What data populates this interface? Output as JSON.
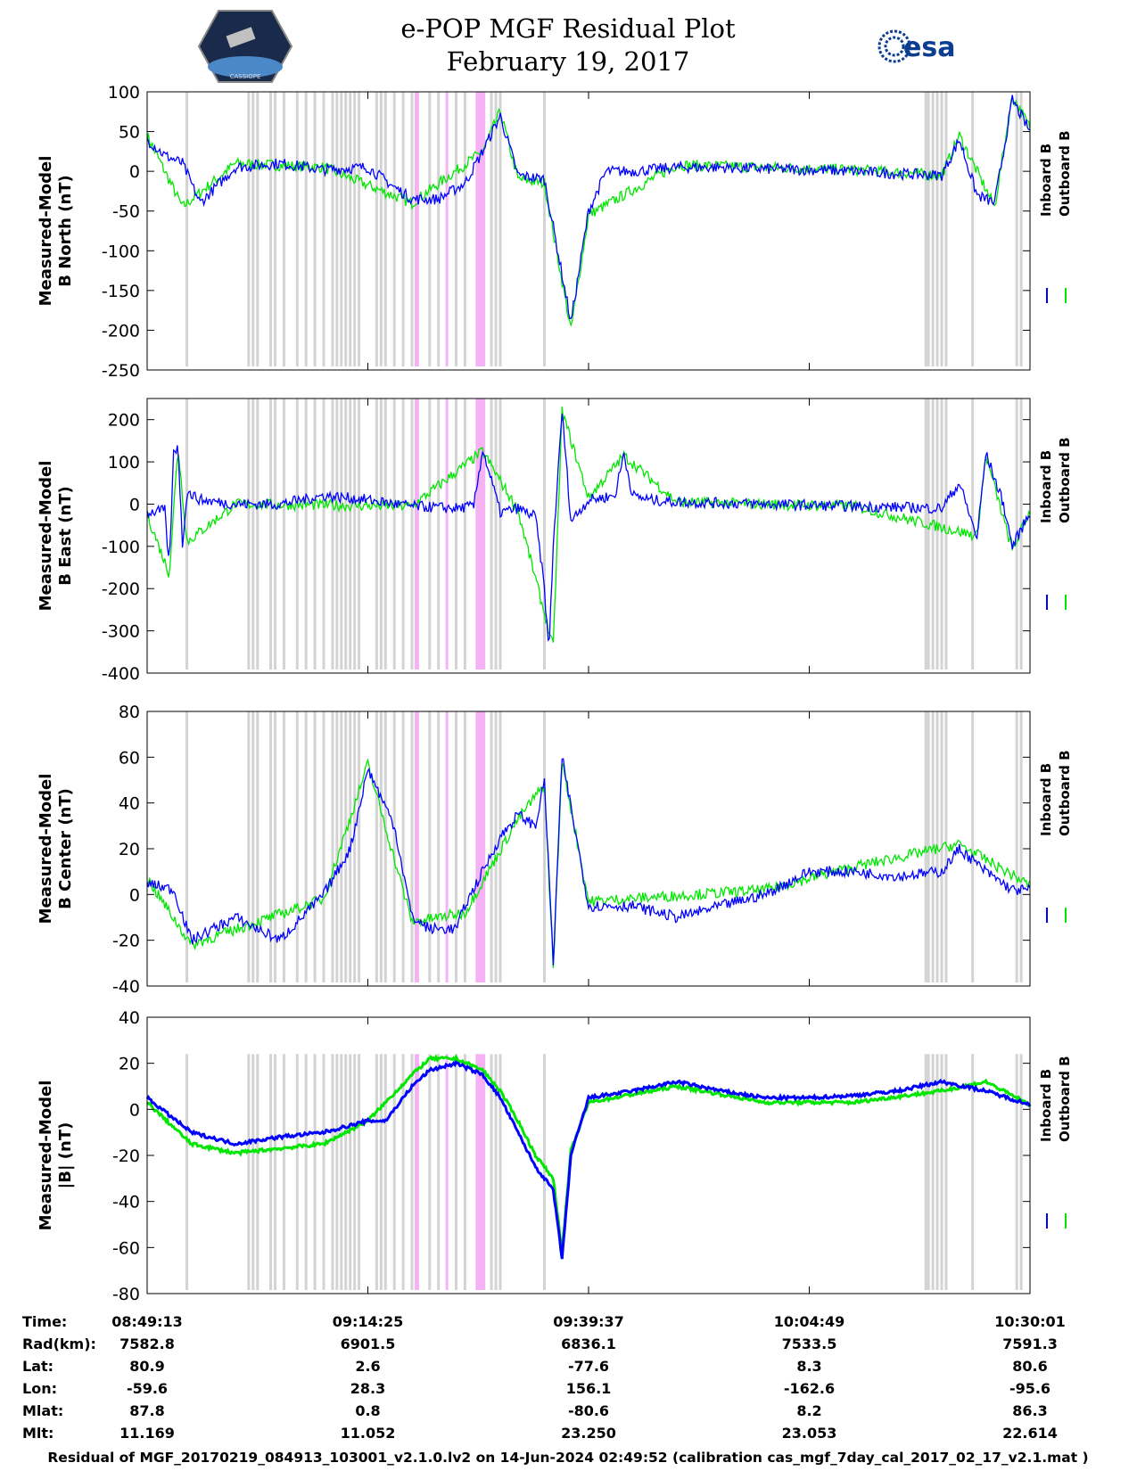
{
  "header": {
    "title_line1": "e-POP MGF Residual Plot",
    "title_line2": "February 19, 2017",
    "logo_left_text": "CASSIOPE",
    "logo_right_text": "esa"
  },
  "colors": {
    "inboard": "#0000ff",
    "outboard": "#00e600",
    "gray_band": "#d3d3d3",
    "pink_band": "#f5b3f5"
  },
  "chart_data": [
    {
      "type": "line",
      "title": "",
      "ylabel": [
        "Measured-Model",
        "B North (nT)"
      ],
      "ylim": [
        -250,
        100
      ],
      "yticks": [
        100,
        50,
        0,
        -50,
        -100,
        -150,
        -200,
        -250
      ],
      "legend": [
        "Inboard B",
        "Outboard B"
      ],
      "series": [
        {
          "name": "Inboard B",
          "x": [
            0,
            0.02,
            0.04,
            0.06,
            0.1,
            0.15,
            0.2,
            0.25,
            0.28,
            0.3,
            0.33,
            0.36,
            0.38,
            0.4,
            0.42,
            0.45,
            0.47,
            0.48,
            0.5,
            0.52,
            0.55,
            0.6,
            0.65,
            0.7,
            0.75,
            0.8,
            0.85,
            0.9,
            0.92,
            0.94,
            0.96,
            0.98,
            1.0
          ],
          "y": [
            40,
            20,
            10,
            -40,
            5,
            10,
            2,
            5,
            -20,
            -35,
            -35,
            -15,
            25,
            70,
            -5,
            -10,
            -130,
            -190,
            -50,
            0,
            0,
            5,
            5,
            3,
            2,
            0,
            -3,
            -5,
            40,
            -30,
            -40,
            90,
            50
          ]
        },
        {
          "name": "Outboard B",
          "x": [
            0,
            0.04,
            0.1,
            0.2,
            0.3,
            0.38,
            0.4,
            0.42,
            0.45,
            0.48,
            0.5,
            0.6,
            0.7,
            0.8,
            0.9,
            0.92,
            0.96,
            0.98,
            1.0
          ],
          "y": [
            45,
            -45,
            10,
            5,
            -40,
            25,
            75,
            -10,
            -15,
            -200,
            -55,
            8,
            5,
            2,
            -5,
            45,
            -45,
            95,
            55
          ]
        }
      ]
    },
    {
      "type": "line",
      "title": "",
      "ylabel": [
        "Measured-Model",
        "B East (nT)"
      ],
      "ylim": [
        -400,
        250
      ],
      "yticks": [
        200,
        100,
        0,
        -100,
        -200,
        -300,
        -400
      ],
      "legend": [
        "Inboard B",
        "Outboard B"
      ],
      "series": [
        {
          "name": "Inboard B",
          "x": [
            0,
            0.02,
            0.025,
            0.03,
            0.035,
            0.04,
            0.045,
            0.06,
            0.1,
            0.15,
            0.2,
            0.25,
            0.3,
            0.35,
            0.37,
            0.38,
            0.4,
            0.42,
            0.44,
            0.45,
            0.455,
            0.46,
            0.47,
            0.48,
            0.5,
            0.53,
            0.54,
            0.55,
            0.57,
            0.6,
            0.7,
            0.8,
            0.9,
            0.92,
            0.94,
            0.95,
            0.97,
            0.98,
            1.0
          ],
          "y": [
            -20,
            -15,
            -150,
            120,
            140,
            -100,
            30,
            10,
            0,
            0,
            20,
            10,
            -5,
            -10,
            -5,
            130,
            -20,
            -10,
            -30,
            -200,
            -350,
            -100,
            220,
            -40,
            10,
            20,
            120,
            20,
            10,
            5,
            0,
            -5,
            -10,
            50,
            -80,
            120,
            0,
            -100,
            -20
          ]
        },
        {
          "name": "Outboard B",
          "x": [
            0,
            0.025,
            0.035,
            0.045,
            0.1,
            0.3,
            0.38,
            0.42,
            0.46,
            0.47,
            0.5,
            0.54,
            0.6,
            0.8,
            0.94,
            0.95,
            0.98,
            1.0
          ],
          "y": [
            -25,
            -165,
            135,
            -90,
            0,
            -5,
            125,
            -15,
            -340,
            220,
            15,
            115,
            5,
            -5,
            -75,
            115,
            -110,
            -15
          ]
        }
      ]
    },
    {
      "type": "line",
      "title": "",
      "ylabel": [
        "Measured-Model",
        "B Center (nT)"
      ],
      "ylim": [
        -40,
        80
      ],
      "yticks": [
        80,
        60,
        40,
        20,
        0,
        -20,
        -40
      ],
      "legend": [
        "Inboard B",
        "Outboard B"
      ],
      "series": [
        {
          "name": "Inboard B",
          "x": [
            0,
            0.03,
            0.05,
            0.1,
            0.15,
            0.2,
            0.23,
            0.25,
            0.28,
            0.3,
            0.32,
            0.35,
            0.36,
            0.38,
            0.4,
            0.42,
            0.44,
            0.45,
            0.46,
            0.47,
            0.5,
            0.55,
            0.6,
            0.65,
            0.7,
            0.75,
            0.8,
            0.85,
            0.9,
            0.92,
            0.95,
            0.98,
            1.0
          ],
          "y": [
            5,
            2,
            -20,
            -10,
            -20,
            0,
            20,
            55,
            30,
            -10,
            -15,
            -15,
            -5,
            10,
            25,
            35,
            30,
            50,
            -30,
            60,
            -5,
            -5,
            -10,
            -5,
            0,
            10,
            10,
            8,
            10,
            20,
            10,
            2,
            2
          ]
        },
        {
          "name": "Outboard B",
          "x": [
            0,
            0.05,
            0.2,
            0.25,
            0.3,
            0.36,
            0.42,
            0.45,
            0.46,
            0.47,
            0.5,
            0.7,
            0.8,
            0.92,
            1.0
          ],
          "y": [
            7,
            -22,
            -2,
            57,
            -12,
            -8,
            33,
            48,
            -32,
            58,
            -3,
            2,
            12,
            22,
            4
          ]
        }
      ]
    },
    {
      "type": "line",
      "title": "",
      "ylabel": [
        "Measured-Model",
        "|B| (nT)"
      ],
      "ylim": [
        -80,
        40
      ],
      "yticks": [
        40,
        20,
        0,
        -20,
        -40,
        -60,
        -80
      ],
      "legend": [
        "Inboard B",
        "Outboard B"
      ],
      "series": [
        {
          "name": "Inboard B",
          "x": [
            0,
            0.05,
            0.1,
            0.15,
            0.2,
            0.25,
            0.27,
            0.3,
            0.32,
            0.35,
            0.38,
            0.4,
            0.42,
            0.44,
            0.46,
            0.47,
            0.48,
            0.5,
            0.55,
            0.6,
            0.65,
            0.7,
            0.75,
            0.8,
            0.85,
            0.9,
            0.95,
            1.0
          ],
          "y": [
            5,
            -10,
            -15,
            -12,
            -10,
            -5,
            -5,
            10,
            17,
            20,
            15,
            5,
            -10,
            -25,
            -35,
            -65,
            -20,
            5,
            8,
            12,
            8,
            5,
            5,
            6,
            8,
            12,
            8,
            2
          ]
        },
        {
          "name": "Outboard B",
          "x": [
            0,
            0.05,
            0.1,
            0.2,
            0.25,
            0.3,
            0.32,
            0.35,
            0.38,
            0.4,
            0.42,
            0.44,
            0.46,
            0.47,
            0.48,
            0.5,
            0.6,
            0.7,
            0.8,
            0.9,
            0.95,
            1.0
          ],
          "y": [
            3,
            -15,
            -19,
            -15,
            -5,
            15,
            22,
            22,
            17,
            8,
            -5,
            -20,
            -30,
            -62,
            -18,
            3,
            10,
            3,
            3,
            8,
            12,
            2
          ]
        }
      ]
    }
  ],
  "bands": {
    "gray": [
      0.045,
      0.115,
      0.12,
      0.125,
      0.14,
      0.145,
      0.155,
      0.17,
      0.18,
      0.19,
      0.2,
      0.21,
      0.215,
      0.22,
      0.225,
      0.23,
      0.235,
      0.24,
      0.26,
      0.265,
      0.27,
      0.28,
      0.29,
      0.3,
      0.32,
      0.33,
      0.35,
      0.36,
      0.39,
      0.4,
      0.395,
      0.45,
      0.882,
      0.885,
      0.89,
      0.895,
      0.9,
      0.905,
      0.935,
      0.985,
      0.99
    ],
    "pink": [
      [
        0.303,
        0.308
      ],
      [
        0.338,
        0.34
      ],
      [
        0.372,
        0.383
      ]
    ]
  },
  "time_axis": {
    "row_labels": [
      "Time:",
      "Rad(km):",
      "Lat:",
      "Lon:",
      "Mlat:",
      "Mlt:"
    ],
    "columns": [
      {
        "values": [
          "08:49:13",
          "7582.8",
          "80.9",
          "-59.6",
          "87.8",
          "11.169"
        ]
      },
      {
        "values": [
          "09:14:25",
          "6901.5",
          "2.6",
          "28.3",
          "0.8",
          "11.052"
        ]
      },
      {
        "values": [
          "09:39:37",
          "6836.1",
          "-77.6",
          "156.1",
          "-80.6",
          "23.250"
        ]
      },
      {
        "values": [
          "10:04:49",
          "7533.5",
          "8.3",
          "-162.6",
          "8.2",
          "23.053"
        ]
      },
      {
        "values": [
          "10:30:01",
          "7591.3",
          "80.6",
          "-95.6",
          "86.3",
          "22.614"
        ]
      }
    ]
  },
  "footer": {
    "text": "Residual of MGF_20170219_084913_103001_v2.1.0.lv2 on 14-Jun-2024 02:49:52 (calibration cas_mgf_7day_cal_2017_02_17_v2.1.mat )"
  }
}
